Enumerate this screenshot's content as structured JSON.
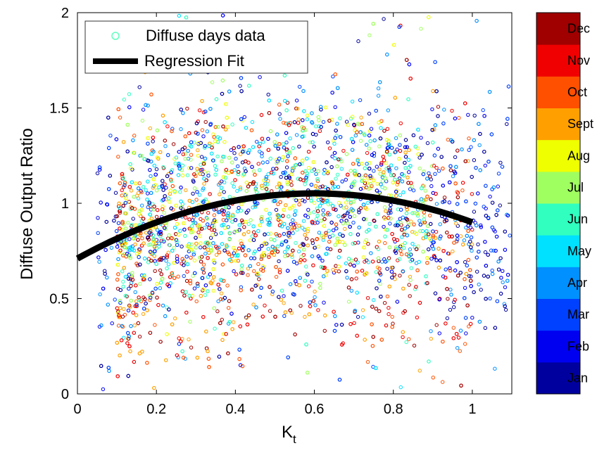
{
  "chart_data": {
    "type": "scatter",
    "title": "",
    "xlabel": "K",
    "xlabel_subscript": "t",
    "ylabel": "Diffuse Output Ratio",
    "xlim": [
      0,
      1.1
    ],
    "ylim": [
      0,
      2
    ],
    "xticks": [
      0,
      0.2,
      0.4,
      0.6,
      0.8,
      1
    ],
    "xtick_labels": [
      "0",
      "0.2",
      "0.4",
      "0.6",
      "0.8",
      "1"
    ],
    "yticks": [
      0,
      0.5,
      1,
      1.5,
      2
    ],
    "ytick_labels": [
      "0",
      "0.5",
      "1",
      "1.5",
      "2"
    ],
    "grid": false,
    "legend": {
      "placement": "top-left",
      "entries": [
        "Diffuse days data",
        "Regression Fit"
      ]
    },
    "regression_fit": {
      "form": "quadratic",
      "coefficients": [
        0.71,
        1.14,
        -0.95
      ],
      "x_range": [
        0,
        1.0
      ]
    },
    "scatter": {
      "approx_points": 4500,
      "x_range": [
        0.02,
        1.1
      ],
      "y_range": [
        0,
        2
      ],
      "center_y": 1.0
    },
    "colorbar": {
      "labels": [
        "Jan",
        "Feb",
        "Mar",
        "Apr",
        "May",
        "Jun",
        "Jul",
        "Aug",
        "Sept",
        "Oct",
        "Nov",
        "Dec"
      ],
      "colors": [
        "#00009f",
        "#0000f0",
        "#0040ff",
        "#0090ff",
        "#00e0ff",
        "#30ffc0",
        "#a0ff60",
        "#f0ff00",
        "#ffa000",
        "#ff5000",
        "#f00000",
        "#a00000"
      ]
    }
  }
}
